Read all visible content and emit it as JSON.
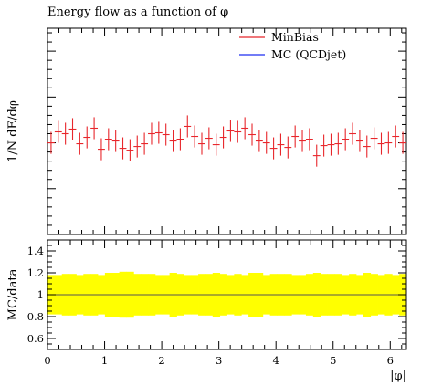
{
  "chart_data": {
    "type": "scatter",
    "title": "Energy flow as a function of φ",
    "xlabel": "|φ|",
    "ylabel": "1/N dE/dφ",
    "ratio_ylabel": "MC/data",
    "xlim": [
      0,
      6.2832
    ],
    "x_ticks": [
      "0",
      "1",
      "2",
      "3",
      "4",
      "5",
      "6"
    ],
    "ratio_ylim": [
      0.5,
      1.5
    ],
    "ratio_ticks": [
      "0.6",
      "0.8",
      "1",
      "1.2",
      "1.4"
    ],
    "legend_position": "top-right",
    "legend": [
      {
        "label": "MinBias",
        "color": "#e8262b"
      },
      {
        "label": "MC (QCDjet)",
        "color": "#1f2ff0"
      }
    ],
    "series": [
      {
        "name": "MinBias",
        "color": "#e8262b",
        "bins": 50,
        "bin_width": 0.12566,
        "x": [
          0.0628,
          0.1885,
          0.3142,
          0.4398,
          0.5655,
          0.6912,
          0.8168,
          0.9425,
          1.0681,
          1.1938,
          1.3195,
          1.4451,
          1.5708,
          1.6965,
          1.8221,
          1.9478,
          2.0735,
          2.1991,
          2.3248,
          2.4504,
          2.5761,
          2.7018,
          2.8274,
          2.9531,
          3.0788,
          3.2044,
          3.3301,
          3.4558,
          3.5814,
          3.7071,
          3.8327,
          3.9584,
          4.0841,
          4.2097,
          4.3354,
          4.4611,
          4.5867,
          4.7124,
          4.8381,
          4.9637,
          5.0894,
          5.215,
          5.3407,
          5.4664,
          5.592,
          5.7177,
          5.8434,
          5.969,
          6.0947,
          6.2204
        ],
        "y": [
          1.0,
          1.12,
          1.1,
          1.15,
          0.99,
          1.06,
          1.16,
          0.93,
          1.04,
          1.02,
          0.94,
          0.92,
          0.96,
          0.99,
          1.1,
          1.11,
          1.09,
          1.02,
          1.04,
          1.18,
          1.07,
          0.99,
          1.05,
          0.98,
          1.06,
          1.13,
          1.12,
          1.16,
          1.09,
          1.02,
          1.0,
          0.94,
          0.98,
          0.95,
          1.07,
          1.02,
          1.04,
          0.86,
          0.97,
          0.98,
          0.99,
          1.04,
          1.1,
          1.02,
          0.96,
          1.05,
          0.99,
          1.0,
          1.07,
          1.0
        ],
        "yerr": [
          0.12,
          0.12,
          0.12,
          0.12,
          0.12,
          0.12,
          0.12,
          0.12,
          0.12,
          0.12,
          0.12,
          0.12,
          0.12,
          0.12,
          0.12,
          0.12,
          0.12,
          0.12,
          0.12,
          0.12,
          0.12,
          0.12,
          0.12,
          0.12,
          0.12,
          0.12,
          0.12,
          0.12,
          0.12,
          0.12,
          0.12,
          0.12,
          0.12,
          0.12,
          0.12,
          0.12,
          0.12,
          0.12,
          0.12,
          0.12,
          0.12,
          0.12,
          0.12,
          0.12,
          0.12,
          0.12,
          0.12,
          0.12,
          0.12,
          0.12
        ]
      }
    ],
    "ratio_band": {
      "color": "#ffff00",
      "center": 1.0,
      "halfwidth": [
        0.18,
        0.18,
        0.19,
        0.19,
        0.18,
        0.19,
        0.19,
        0.18,
        0.2,
        0.2,
        0.21,
        0.21,
        0.19,
        0.19,
        0.19,
        0.18,
        0.18,
        0.2,
        0.19,
        0.18,
        0.18,
        0.19,
        0.19,
        0.2,
        0.19,
        0.18,
        0.19,
        0.18,
        0.2,
        0.2,
        0.18,
        0.19,
        0.19,
        0.19,
        0.18,
        0.18,
        0.19,
        0.2,
        0.19,
        0.19,
        0.19,
        0.18,
        0.19,
        0.18,
        0.2,
        0.19,
        0.18,
        0.19,
        0.18,
        0.19
      ]
    }
  }
}
